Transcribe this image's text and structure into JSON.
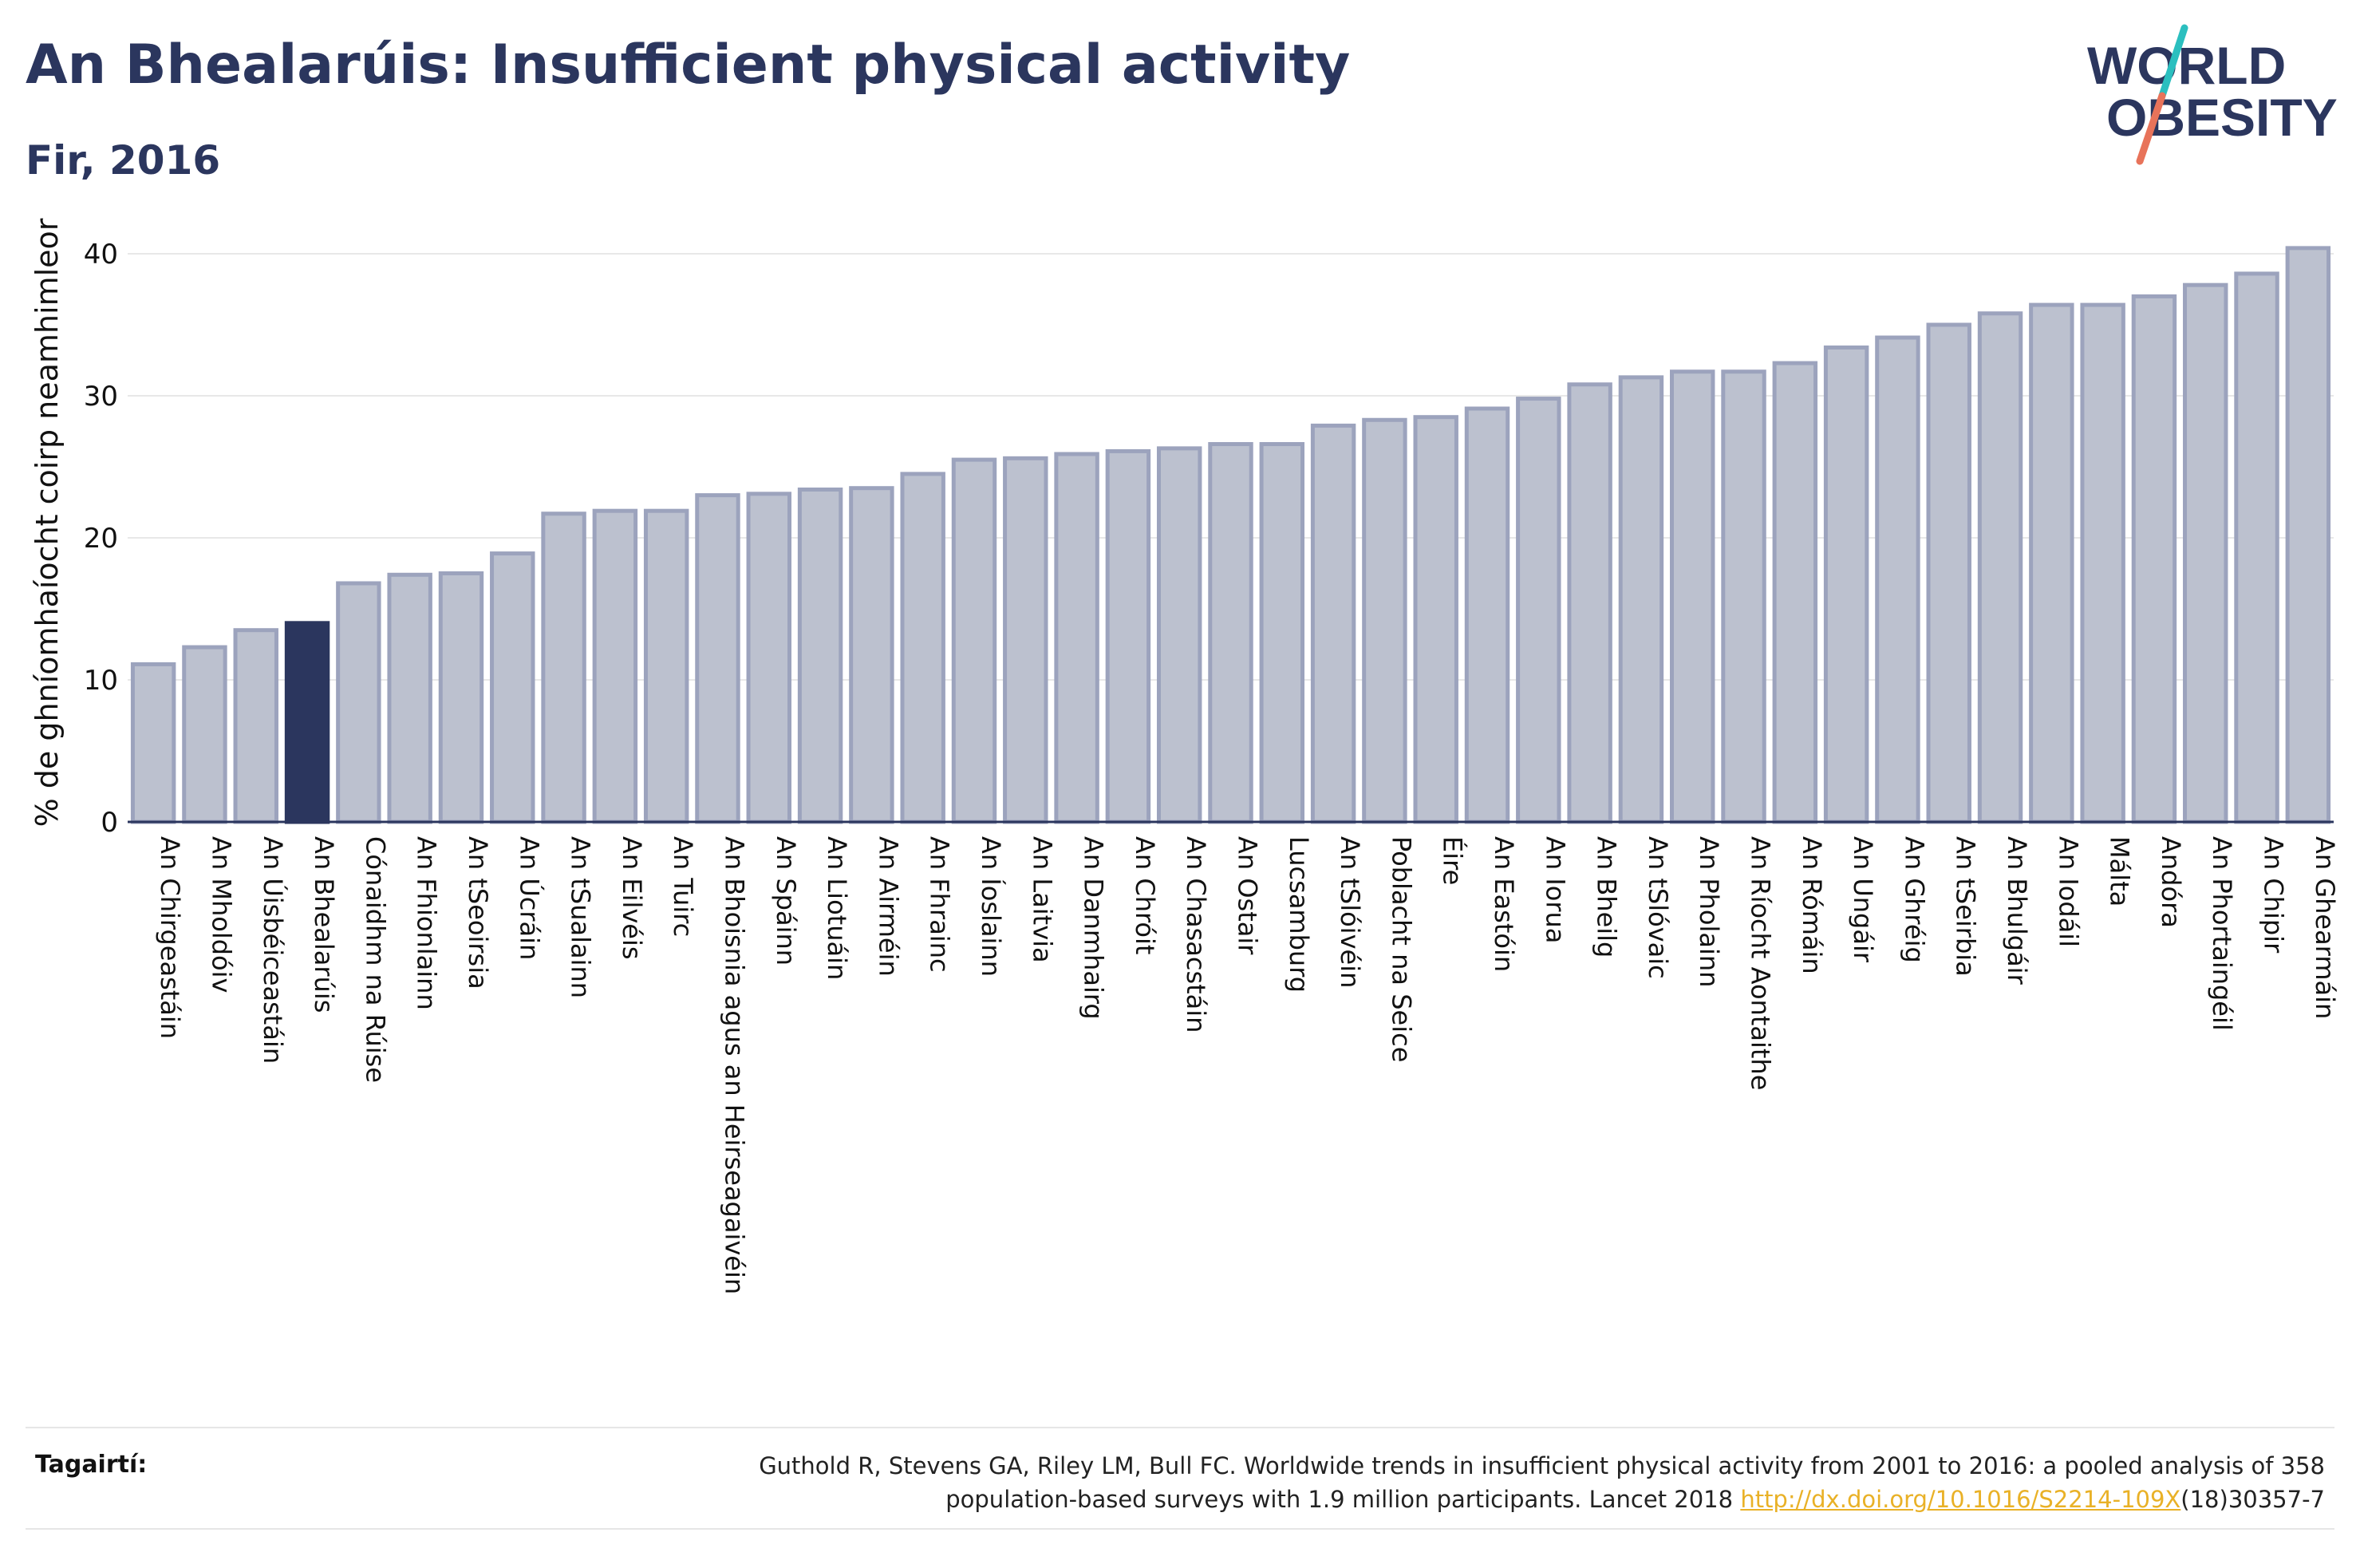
{
  "header": {
    "title": "An Bhealarúis: Insufficient physical activity",
    "subtitle": "Fir, 2016"
  },
  "logo": {
    "line1": "WORLD",
    "line2": "OBESITY",
    "accent_colors": [
      "#2bbfbf",
      "#e8735a"
    ]
  },
  "colors": {
    "highlight_bar": "#2b365e",
    "default_bar": "#bcc1cf",
    "bar_border": "#9ca3bd",
    "text": "#2b365e"
  },
  "chart_data": {
    "type": "bar",
    "title": "An Bhealarúis: Insufficient physical activity",
    "subtitle": "Fir, 2016",
    "xlabel": "",
    "ylabel": "% de ghníomhaíocht coirp neamhimleor",
    "ylim": [
      0,
      42
    ],
    "yticks": [
      0,
      10,
      20,
      30,
      40
    ],
    "grid": true,
    "highlight": "An Bhealarúis",
    "categories": [
      "An Chirgeastáin",
      "An Mholdóiv",
      "An Úisbéiceastáin",
      "An Bhealarúis",
      "Cónaidhm na Rúise",
      "An Fhionlainn",
      "An tSeoirsia",
      "An Úcráin",
      "An tSualainn",
      "An Eilvéis",
      "An Tuirc",
      "An Bhoisnia agus an Heirseagaivéin",
      "An Spáinn",
      "An Liotuáin",
      "An Airméin",
      "An Fhrainc",
      "An Íoslainn",
      "An Laitvia",
      "An Danmhairg",
      "An Chróit",
      "An Chasacstáin",
      "An Ostair",
      "Lucsamburg",
      "An tSlóivéin",
      "Poblacht na Seice",
      "Éire",
      "An Eastóin",
      "An Iorua",
      "An Bheilg",
      "An tSlóvaic",
      "An Pholainn",
      "An Ríocht Aontaithe",
      "An Rómáin",
      "An Ungáir",
      "An Ghréig",
      "An tSeirbia",
      "An Bhulgáir",
      "An Iodáil",
      "Málta",
      "Andóra",
      "An Phortaingéil",
      "An Chipir",
      "An Ghearmáin"
    ],
    "series": [
      {
        "values": [
          11.1,
          12.3,
          13.5,
          14.0,
          16.8,
          17.4,
          17.5,
          18.9,
          21.7,
          21.9,
          21.9,
          23.0,
          23.1,
          23.4,
          23.5,
          24.5,
          25.5,
          25.6,
          25.9,
          26.1,
          26.3,
          26.6,
          26.6,
          27.9,
          28.3,
          28.5,
          29.1,
          29.8,
          30.8,
          31.3,
          31.7,
          31.7,
          32.3,
          33.4,
          34.1,
          35.0,
          35.8,
          36.4,
          36.4,
          37.0,
          37.8,
          38.6,
          40.4
        ]
      }
    ]
  },
  "references": {
    "label": "Tagairtí:",
    "text_line1": "Guthold R, Stevens GA, Riley LM, Bull FC. Worldwide trends in insufficient physical activity from 2001 to 2016: a pooled analysis of 358",
    "text_line2_prefix": "population-based surveys with 1.9 million participants. Lancet 2018 ",
    "link": "http://dx.doi.org/10.1016/S2214-109X",
    "text_line2_suffix": "(18)30357-7"
  }
}
